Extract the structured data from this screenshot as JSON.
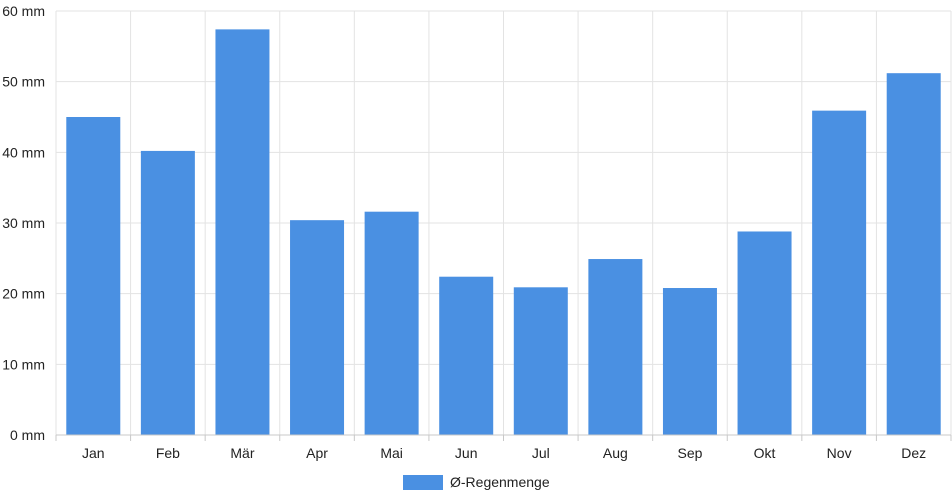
{
  "chart_data": {
    "type": "bar",
    "categories": [
      "Jan",
      "Feb",
      "Mär",
      "Apr",
      "Mai",
      "Jun",
      "Jul",
      "Aug",
      "Sep",
      "Okt",
      "Nov",
      "Dez"
    ],
    "series": [
      {
        "name": "Ø-Regenmenge",
        "values": [
          45,
          40.2,
          57.4,
          30.4,
          31.6,
          22.4,
          20.9,
          24.9,
          20.8,
          28.8,
          45.9,
          51.2
        ],
        "color": "#4a90e2"
      }
    ],
    "y_ticks": [
      "0 mm",
      "10 mm",
      "20 mm",
      "30 mm",
      "40 mm",
      "50 mm",
      "60 mm"
    ],
    "ylim": [
      0,
      60
    ],
    "y_unit": "mm",
    "grid": true,
    "legend_position": "bottom",
    "title": "",
    "xlabel": "",
    "ylabel": ""
  }
}
